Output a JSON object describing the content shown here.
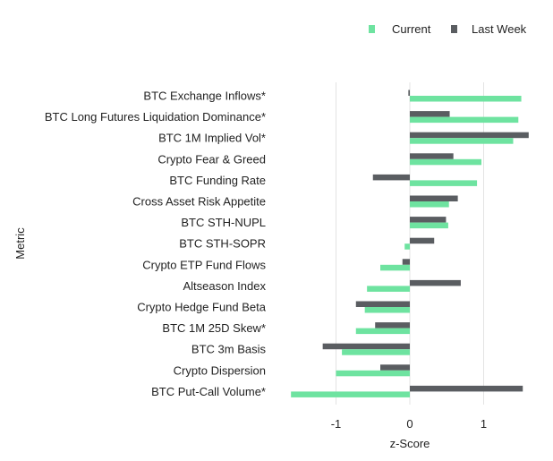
{
  "chart_data": {
    "type": "bar",
    "orientation": "horizontal",
    "xlabel": "z-Score",
    "ylabel": "Metric",
    "xlim": [
      -1.6,
      1.6
    ],
    "xticks": [
      -1,
      0,
      1
    ],
    "xtick_labels": [
      "-1",
      "0",
      "1"
    ],
    "grid": true,
    "legend_position": "top-right",
    "categories": [
      "BTC Exchange Inflows*",
      "BTC Long Futures Liquidation Dominance*",
      "BTC 1M Implied Vol*",
      "Crypto Fear & Greed",
      "BTC Funding Rate",
      "Cross Asset Risk Appetite",
      "BTC STH-NUPL",
      "BTC STH-SOPR",
      "Crypto ETP Fund Flows",
      "Altseason Index",
      "Crypto Hedge Fund Beta",
      "BTC 1M 25D Skew*",
      "BTC 3m Basis",
      "Crypto Dispersion",
      "BTC Put-Call Volume*"
    ],
    "series": [
      {
        "name": "Current",
        "color": "#6ee3a0",
        "values": [
          1.51,
          1.47,
          1.4,
          0.97,
          0.91,
          0.53,
          0.52,
          -0.07,
          -0.4,
          -0.58,
          -0.61,
          -0.73,
          -0.92,
          -1.0,
          -1.61
        ]
      },
      {
        "name": "Last Week",
        "color": "#5a5d61",
        "values": [
          -0.02,
          0.54,
          1.61,
          0.59,
          -0.5,
          0.65,
          0.49,
          0.33,
          -0.1,
          0.69,
          -0.73,
          -0.47,
          -1.18,
          -0.4,
          1.53
        ]
      }
    ]
  }
}
